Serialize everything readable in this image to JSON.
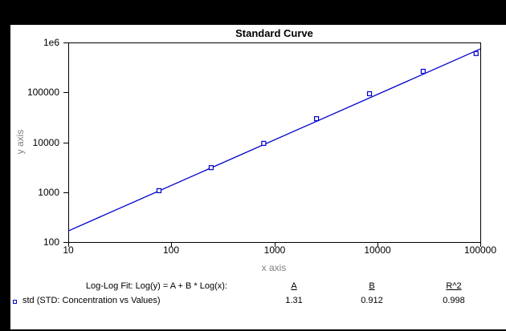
{
  "window": {
    "frame_color": "#000000",
    "panel_color": "#FFFFFF"
  },
  "chart_data": {
    "type": "scatter",
    "title": "Standard Curve",
    "xlabel": "x axis",
    "ylabel": "y axis",
    "x_scale": "log",
    "y_scale": "log",
    "xlim": [
      10,
      100000
    ],
    "ylim": [
      100,
      1000000
    ],
    "grid": false,
    "legend_position": "bottom-left",
    "accent_color": "#0000CC",
    "axis_title_color": "#808080",
    "x_ticks": [
      {
        "value": 10,
        "label": "10"
      },
      {
        "value": 100,
        "label": "100"
      },
      {
        "value": 1000,
        "label": "1000"
      },
      {
        "value": 10000,
        "label": "10000"
      },
      {
        "value": 100000,
        "label": "100000"
      }
    ],
    "y_ticks": [
      {
        "value": 100,
        "label": "100"
      },
      {
        "value": 1000,
        "label": "1000"
      },
      {
        "value": 10000,
        "label": "10000"
      },
      {
        "value": 100000,
        "label": "100000"
      },
      {
        "value": 1000000,
        "label": "1e6"
      }
    ],
    "series": [
      {
        "name": "std (STD: Concentration vs Values)",
        "marker": "open-square",
        "color": "#0000CC",
        "points": [
          {
            "x": 76,
            "y": 1070
          },
          {
            "x": 244,
            "y": 3100
          },
          {
            "x": 790,
            "y": 9500
          },
          {
            "x": 2570,
            "y": 29700
          },
          {
            "x": 8400,
            "y": 94000
          },
          {
            "x": 27900,
            "y": 264000
          },
          {
            "x": 91000,
            "y": 600000
          }
        ]
      }
    ],
    "fit": {
      "label": "Log-Log Fit: Log(y) = A + B * Log(x):",
      "headers": {
        "A": "A",
        "B": "B",
        "R2": "R^2"
      },
      "values": {
        "A": "1.31",
        "B": "0.912",
        "R2": "0.998"
      }
    }
  }
}
